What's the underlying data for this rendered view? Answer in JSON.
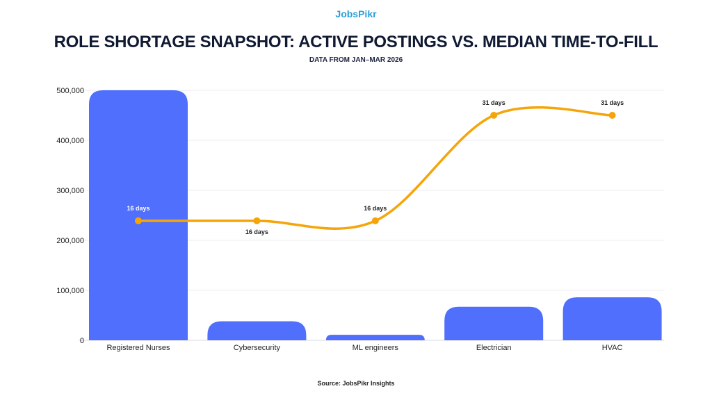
{
  "logo": "JobsPikr",
  "title": "ROLE SHORTAGE SNAPSHOT: ACTIVE POSTINGS VS. MEDIAN TIME-TO-FILL",
  "subtitle": "DATA FROM JAN–MAR 2026",
  "source": "Source: JobsPikr Insights",
  "chart_data": {
    "type": "bar",
    "categories": [
      "Registered Nurses",
      "Cybersecurity",
      "ML engineers",
      "Electrician",
      "HVAC"
    ],
    "series": [
      {
        "type": "bar",
        "values": [
          500000,
          38000,
          11000,
          67000,
          86000
        ],
        "color": "#4f6ffc"
      },
      {
        "type": "line",
        "values": [
          16,
          16,
          16,
          31,
          31
        ],
        "labels": [
          "16 days",
          "16 days",
          "16 days",
          "31 days",
          "31 days"
        ],
        "color": "#f5a50a",
        "smooth": true
      }
    ],
    "ylim": [
      0,
      500000
    ],
    "yticks": [
      0,
      100000,
      200000,
      300000,
      400000,
      500000
    ],
    "ytick_labels": [
      "0",
      "100,000",
      "200,000",
      "300,000",
      "400,000",
      "500,000"
    ],
    "grid": true,
    "xlabel": "",
    "ylabel": ""
  }
}
